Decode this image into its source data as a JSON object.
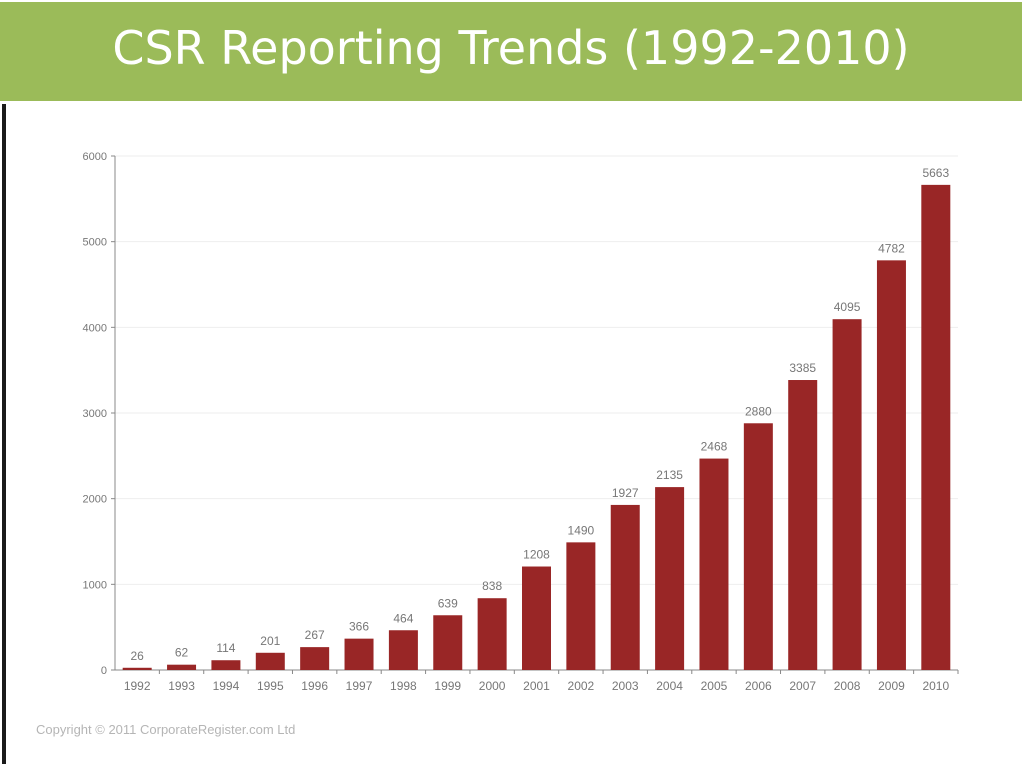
{
  "slide": {
    "title": "CSR Reporting Trends (1992-2010)",
    "copyright": "Copyright © 2011 CorporateRegister.com Ltd"
  },
  "colors": {
    "title_bar": "#9bbb59",
    "title_text": "#ffffff",
    "bar": "#992626",
    "axis": "#888888",
    "grid": "#eeeeee",
    "label": "#777777"
  },
  "chart_data": {
    "type": "bar",
    "title": "",
    "xlabel": "",
    "ylabel": "",
    "ylim": [
      0,
      6000
    ],
    "yticks": [
      0,
      1000,
      2000,
      3000,
      4000,
      5000,
      6000
    ],
    "grid": true,
    "data_labels": true,
    "categories": [
      "1992",
      "1993",
      "1994",
      "1995",
      "1996",
      "1997",
      "1998",
      "1999",
      "2000",
      "2001",
      "2002",
      "2003",
      "2004",
      "2005",
      "2006",
      "2007",
      "2008",
      "2009",
      "2010"
    ],
    "values": [
      26,
      62,
      114,
      201,
      267,
      366,
      464,
      639,
      838,
      1208,
      1490,
      1927,
      2135,
      2468,
      2880,
      3385,
      4095,
      4782,
      5663
    ]
  }
}
